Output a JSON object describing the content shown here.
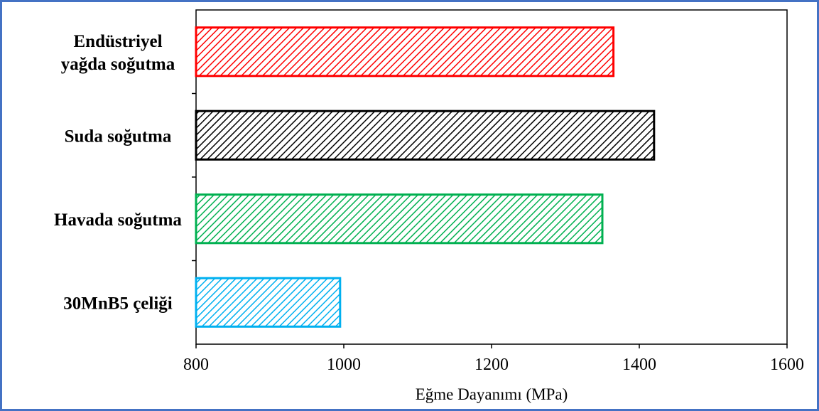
{
  "chart_data": {
    "type": "bar",
    "orientation": "horizontal",
    "categories": [
      "Endüstriyel yağda soğutma",
      "Suda soğutma",
      "Havada soğutma",
      "30MnB5 çeliği"
    ],
    "category_lines": [
      [
        "Endüstriyel",
        "yağda soğutma"
      ],
      [
        "Suda soğutma"
      ],
      [
        "Havada soğutma"
      ],
      [
        "30MnB5 çeliği"
      ]
    ],
    "values": [
      1365,
      1420,
      1350,
      995
    ],
    "colors": [
      "#ff0000",
      "#000000",
      "#00b050",
      "#00b0f0"
    ],
    "fill_pattern": "diagonal-hatch",
    "xlabel": "Eğme Dayanımı (MPa)",
    "ylabel": "",
    "xlim": [
      800,
      1600
    ],
    "xticks": [
      800,
      1000,
      1200,
      1400,
      1600
    ],
    "grid": false
  }
}
